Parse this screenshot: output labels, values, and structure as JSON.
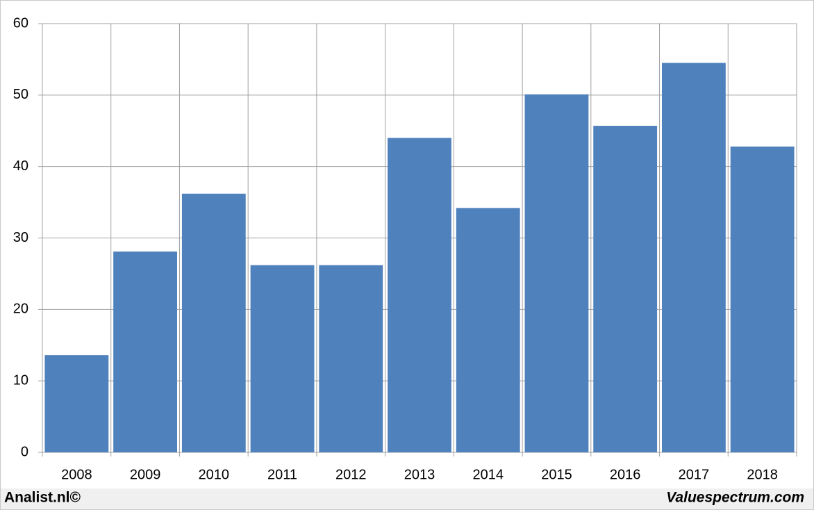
{
  "chart_data": {
    "type": "bar",
    "categories": [
      "2008",
      "2009",
      "2010",
      "2011",
      "2012",
      "2013",
      "2014",
      "2015",
      "2016",
      "2017",
      "2018"
    ],
    "values": [
      13.6,
      28.1,
      36.2,
      26.2,
      26.2,
      44.0,
      34.2,
      50.1,
      45.7,
      54.5,
      42.8
    ],
    "color": "#4f81bd",
    "ylim": [
      0,
      60
    ],
    "yticks": [
      0,
      10,
      20,
      30,
      40,
      50,
      60
    ],
    "grid": true,
    "annotations": [
      "Analist.nl©",
      "Valuespectrum.com"
    ]
  }
}
